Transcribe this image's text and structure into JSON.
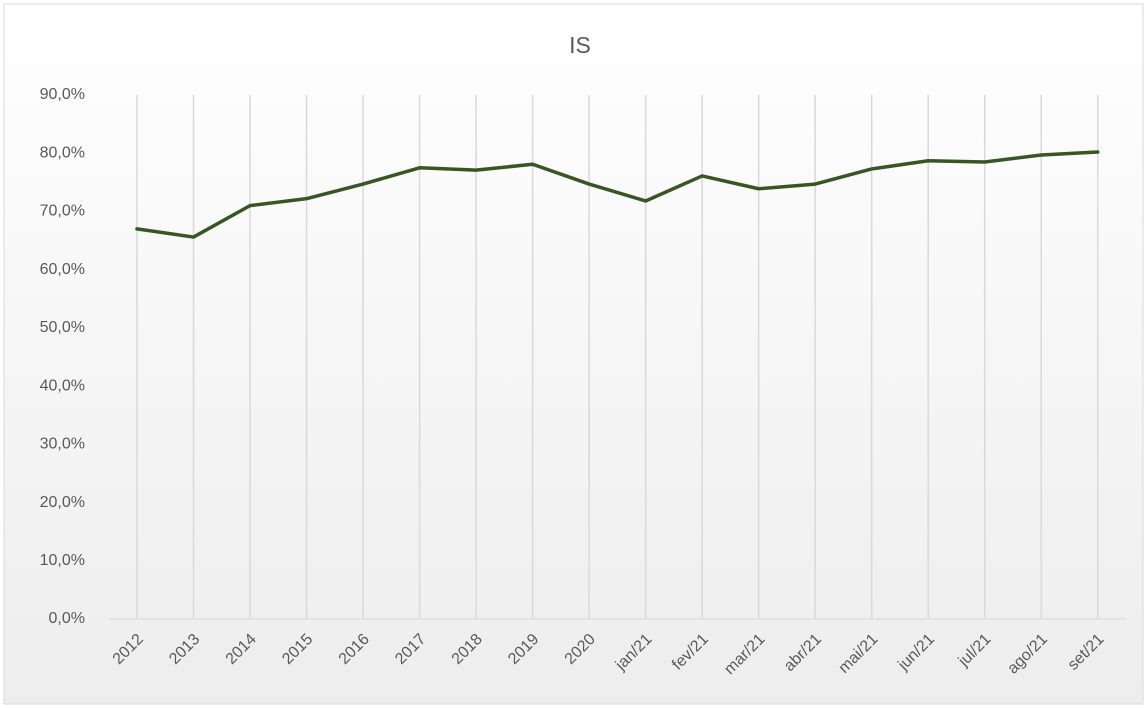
{
  "chart_data": {
    "type": "line",
    "title": "IS",
    "categories": [
      "2012",
      "2013",
      "2014",
      "2015",
      "2016",
      "2017",
      "2018",
      "2019",
      "2020",
      "jan/21",
      "fev/21",
      "mar/21",
      "abr/21",
      "mai/21",
      "jun/21",
      "jul/21",
      "ago/21",
      "set/21"
    ],
    "series": [
      {
        "name": "IS",
        "color": "#375623",
        "values": [
          67.0,
          65.6,
          71.0,
          72.2,
          74.7,
          77.5,
          77.1,
          78.1,
          74.7,
          71.8,
          76.1,
          73.9,
          74.7,
          77.3,
          78.7,
          78.5,
          79.7,
          80.2
        ]
      }
    ],
    "ylim": [
      0,
      90
    ],
    "yticks": [
      {
        "value": 0,
        "label": "0,0%"
      },
      {
        "value": 10,
        "label": "10,0%"
      },
      {
        "value": 20,
        "label": "20,0%"
      },
      {
        "value": 30,
        "label": "30,0%"
      },
      {
        "value": 40,
        "label": "40,0%"
      },
      {
        "value": 50,
        "label": "50,0%"
      },
      {
        "value": 60,
        "label": "60,0%"
      },
      {
        "value": 70,
        "label": "70,0%"
      },
      {
        "value": 80,
        "label": "80,0%"
      },
      {
        "value": 90,
        "label": "90,0%"
      }
    ],
    "grid": "vertical"
  }
}
